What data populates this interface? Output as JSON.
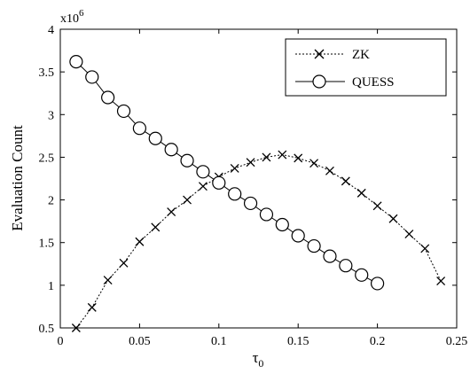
{
  "chart_data": {
    "type": "line",
    "xlabel": "τ0",
    "xlabel_base": "τ",
    "xlabel_sub": "0",
    "ylabel": "Evaluation Count",
    "y_multiplier_base": "x10",
    "y_multiplier_exp": "6",
    "xlim": [
      0,
      0.25
    ],
    "ylim": [
      0.5,
      4
    ],
    "x_ticks": [
      0,
      0.05,
      0.1,
      0.15,
      0.2,
      0.25
    ],
    "x_tick_labels": [
      "0",
      "0.05",
      "0.1",
      "0.15",
      "0.2",
      "0.25"
    ],
    "y_ticks": [
      0.5,
      1,
      1.5,
      2,
      2.5,
      3,
      3.5,
      4
    ],
    "y_tick_labels": [
      "0.5",
      "1",
      "1.5",
      "2",
      "2.5",
      "3",
      "3.5",
      "4"
    ],
    "grid": false,
    "legend_position": "top-right",
    "series": [
      {
        "name": "ZK",
        "line_style": "dotted",
        "marker": "x",
        "x": [
          0.01,
          0.02,
          0.03,
          0.04,
          0.05,
          0.06,
          0.07,
          0.08,
          0.09,
          0.1,
          0.11,
          0.12,
          0.13,
          0.14,
          0.15,
          0.16,
          0.17,
          0.18,
          0.19,
          0.2,
          0.21,
          0.22,
          0.23,
          0.24
        ],
        "y": [
          0.5,
          0.74,
          1.06,
          1.26,
          1.51,
          1.68,
          1.86,
          2.0,
          2.16,
          2.27,
          2.37,
          2.44,
          2.5,
          2.53,
          2.49,
          2.43,
          2.34,
          2.22,
          2.08,
          1.93,
          1.78,
          1.6,
          1.43,
          1.05
        ]
      },
      {
        "name": "QUESS",
        "line_style": "solid",
        "marker": "o",
        "x": [
          0.01,
          0.02,
          0.03,
          0.04,
          0.05,
          0.06,
          0.07,
          0.08,
          0.09,
          0.1,
          0.11,
          0.12,
          0.13,
          0.14,
          0.15,
          0.16,
          0.17,
          0.18,
          0.19,
          0.2
        ],
        "y": [
          3.62,
          3.44,
          3.2,
          3.04,
          2.84,
          2.72,
          2.59,
          2.46,
          2.33,
          2.2,
          2.07,
          1.96,
          1.83,
          1.71,
          1.58,
          1.46,
          1.34,
          1.23,
          1.12,
          1.02
        ]
      }
    ]
  }
}
